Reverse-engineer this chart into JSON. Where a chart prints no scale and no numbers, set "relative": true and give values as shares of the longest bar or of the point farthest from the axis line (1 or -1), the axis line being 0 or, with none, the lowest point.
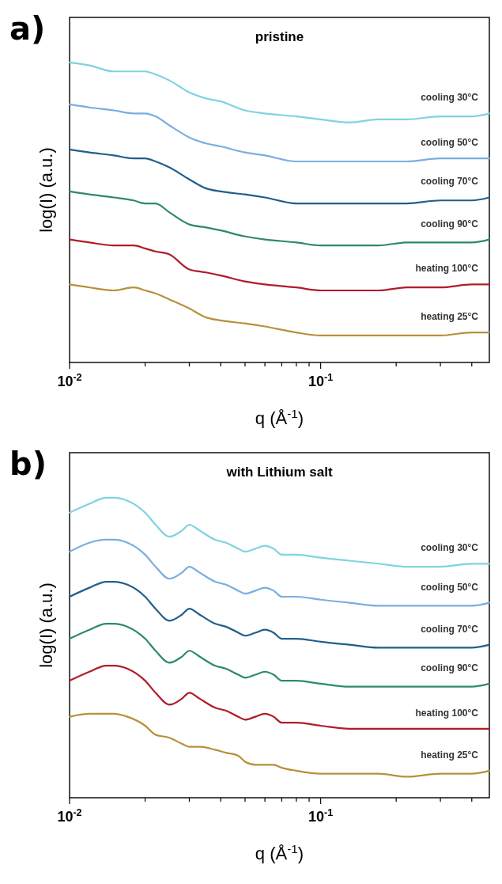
{
  "chart_data": [
    {
      "type": "line",
      "title": "pristine",
      "annotations": [
        "a)"
      ],
      "xlabel": "q (Å$^{-1}$)",
      "ylabel": "log(I) (a.u.)",
      "log": "x",
      "relative": true,
      "legend": false,
      "marker": "none",
      "line_style": "solid",
      "xlim": [
        0.01,
        0.47
      ],
      "xticks": [
        {
          "value": 0.01,
          "label": "10$^{-2}$"
        },
        {
          "value": 0.02,
          "label": null
        },
        {
          "value": 0.03,
          "label": null
        },
        {
          "value": 0.04,
          "label": null
        },
        {
          "value": 0.05,
          "label": null
        },
        {
          "value": 0.06,
          "label": null
        },
        {
          "value": 0.07,
          "label": null
        },
        {
          "value": 0.08,
          "label": null
        },
        {
          "value": 0.09,
          "label": null
        },
        {
          "value": 0.1,
          "label": "10$^{-1}$"
        },
        {
          "value": 0.2,
          "label": null
        },
        {
          "value": 0.3,
          "label": null
        },
        {
          "value": 0.4,
          "label": null
        }
      ],
      "x": [
        0.01,
        0.012,
        0.015,
        0.018,
        0.02,
        0.022,
        0.025,
        0.03,
        0.035,
        0.04,
        0.05,
        0.06,
        0.08,
        0.1,
        0.13,
        0.17,
        0.22,
        0.3,
        0.4,
        0.47
      ],
      "series": [
        {
          "name": "cooling 30°C",
          "color": "#7fd3e0",
          "values": [
            1.0,
            0.99,
            0.97,
            0.97,
            0.97,
            0.96,
            0.94,
            0.9,
            0.88,
            0.87,
            0.84,
            0.83,
            0.82,
            0.81,
            0.8,
            0.81,
            0.81,
            0.82,
            0.82,
            0.83
          ]
        },
        {
          "name": "cooling 50°C",
          "color": "#7aaee0",
          "values": [
            0.86,
            0.85,
            0.84,
            0.83,
            0.83,
            0.82,
            0.79,
            0.75,
            0.73,
            0.72,
            0.7,
            0.69,
            0.67,
            0.67,
            0.67,
            0.67,
            0.67,
            0.68,
            0.68,
            0.68
          ]
        },
        {
          "name": "cooling 70°C",
          "color": "#1f5f8b",
          "values": [
            0.71,
            0.7,
            0.69,
            0.68,
            0.68,
            0.67,
            0.65,
            0.61,
            0.58,
            0.57,
            0.56,
            0.55,
            0.53,
            0.53,
            0.53,
            0.53,
            0.53,
            0.54,
            0.54,
            0.55
          ]
        },
        {
          "name": "cooling 90°C",
          "color": "#2e8b64",
          "values": [
            0.57,
            0.56,
            0.55,
            0.54,
            0.53,
            0.53,
            0.5,
            0.46,
            0.45,
            0.44,
            0.42,
            0.41,
            0.4,
            0.39,
            0.39,
            0.39,
            0.4,
            0.4,
            0.4,
            0.41
          ]
        },
        {
          "name": "heating 100°C",
          "color": "#b01c2a",
          "values": [
            0.41,
            0.4,
            0.39,
            0.39,
            0.38,
            0.37,
            0.36,
            0.31,
            0.3,
            0.29,
            0.27,
            0.26,
            0.25,
            0.24,
            0.24,
            0.24,
            0.25,
            0.25,
            0.26,
            0.26
          ]
        },
        {
          "name": "heating 25°C",
          "color": "#b8903a",
          "values": [
            0.26,
            0.25,
            0.24,
            0.25,
            0.24,
            0.23,
            0.21,
            0.18,
            0.15,
            0.14,
            0.13,
            0.12,
            0.1,
            0.09,
            0.09,
            0.09,
            0.09,
            0.09,
            0.1,
            0.1
          ]
        }
      ]
    },
    {
      "type": "line",
      "title": "with Lithium salt",
      "annotations": [
        "b)"
      ],
      "xlabel": "q (Å$^{-1}$)",
      "ylabel": "log(I) (a.u.)",
      "log": "x",
      "relative": true,
      "legend": false,
      "marker": "none",
      "line_style": "solid",
      "xlim": [
        0.01,
        0.47
      ],
      "xticks": [
        {
          "value": 0.01,
          "label": "10$^{-2}$"
        },
        {
          "value": 0.02,
          "label": null
        },
        {
          "value": 0.03,
          "label": null
        },
        {
          "value": 0.04,
          "label": null
        },
        {
          "value": 0.05,
          "label": null
        },
        {
          "value": 0.06,
          "label": null
        },
        {
          "value": 0.07,
          "label": null
        },
        {
          "value": 0.08,
          "label": null
        },
        {
          "value": 0.09,
          "label": null
        },
        {
          "value": 0.1,
          "label": "10$^{-1}$"
        },
        {
          "value": 0.2,
          "label": null
        },
        {
          "value": 0.3,
          "label": null
        },
        {
          "value": 0.4,
          "label": null
        }
      ],
      "x": [
        0.01,
        0.012,
        0.014,
        0.015,
        0.017,
        0.02,
        0.022,
        0.025,
        0.028,
        0.03,
        0.033,
        0.038,
        0.042,
        0.047,
        0.05,
        0.055,
        0.06,
        0.065,
        0.07,
        0.08,
        0.1,
        0.13,
        0.17,
        0.22,
        0.3,
        0.4,
        0.47
      ],
      "series": [
        {
          "name": "cooling 30°C",
          "color": "#7fd3e0",
          "values": [
            0.95,
            0.98,
            1.0,
            1.0,
            0.99,
            0.95,
            0.91,
            0.87,
            0.89,
            0.91,
            0.89,
            0.86,
            0.85,
            0.83,
            0.82,
            0.83,
            0.84,
            0.83,
            0.81,
            0.81,
            0.8,
            0.79,
            0.78,
            0.77,
            0.77,
            0.78,
            0.78
          ]
        },
        {
          "name": "cooling 50°C",
          "color": "#7aaee0",
          "values": [
            0.82,
            0.85,
            0.86,
            0.86,
            0.85,
            0.81,
            0.77,
            0.73,
            0.75,
            0.77,
            0.75,
            0.72,
            0.71,
            0.69,
            0.68,
            0.69,
            0.7,
            0.69,
            0.67,
            0.67,
            0.66,
            0.65,
            0.64,
            0.64,
            0.64,
            0.64,
            0.65
          ]
        },
        {
          "name": "cooling 70°C",
          "color": "#1f5f8b",
          "values": [
            0.67,
            0.7,
            0.72,
            0.72,
            0.71,
            0.67,
            0.63,
            0.59,
            0.61,
            0.63,
            0.61,
            0.58,
            0.57,
            0.55,
            0.54,
            0.55,
            0.56,
            0.55,
            0.53,
            0.53,
            0.52,
            0.51,
            0.5,
            0.5,
            0.5,
            0.5,
            0.51
          ]
        },
        {
          "name": "cooling 90°C",
          "color": "#2e8b64",
          "values": [
            0.53,
            0.56,
            0.58,
            0.58,
            0.57,
            0.53,
            0.49,
            0.45,
            0.47,
            0.49,
            0.47,
            0.44,
            0.43,
            0.41,
            0.4,
            0.41,
            0.42,
            0.41,
            0.39,
            0.39,
            0.38,
            0.37,
            0.37,
            0.37,
            0.37,
            0.37,
            0.38
          ]
        },
        {
          "name": "heating 100°C",
          "color": "#b01c2a",
          "values": [
            0.39,
            0.42,
            0.44,
            0.44,
            0.43,
            0.39,
            0.35,
            0.31,
            0.33,
            0.35,
            0.33,
            0.3,
            0.29,
            0.27,
            0.26,
            0.27,
            0.28,
            0.27,
            0.25,
            0.25,
            0.24,
            0.23,
            0.23,
            0.23,
            0.23,
            0.23,
            0.23
          ]
        },
        {
          "name": "heating 25°C",
          "color": "#b8903a",
          "values": [
            0.27,
            0.28,
            0.28,
            0.28,
            0.27,
            0.24,
            0.21,
            0.2,
            0.18,
            0.17,
            0.17,
            0.16,
            0.15,
            0.14,
            0.12,
            0.11,
            0.11,
            0.11,
            0.1,
            0.09,
            0.08,
            0.08,
            0.08,
            0.07,
            0.08,
            0.08,
            0.09
          ]
        }
      ]
    }
  ]
}
